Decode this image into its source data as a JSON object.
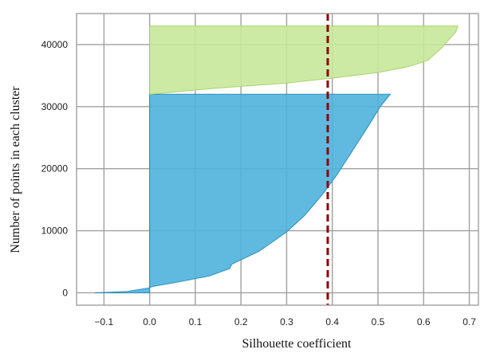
{
  "chart_data": {
    "type": "area",
    "title": "",
    "xlabel": "Silhouette coefficient",
    "ylabel": "Number of points in each  cluster",
    "xlim": [
      -0.16,
      0.72
    ],
    "ylim": [
      -2000,
      45000
    ],
    "xticks": [
      -0.1,
      0.0,
      0.1,
      0.2,
      0.3,
      0.4,
      0.5,
      0.6,
      0.7
    ],
    "xtick_labels": [
      "−0.1",
      "0.0",
      "0.1",
      "0.2",
      "0.3",
      "0.4",
      "0.5",
      "0.6",
      "0.7"
    ],
    "yticks": [
      0,
      10000,
      20000,
      30000,
      40000
    ],
    "ytick_labels": [
      "0",
      "10000",
      "20000",
      "30000",
      "40000"
    ],
    "grid": true,
    "average_line": {
      "x": 0.39,
      "color": "#8b0000",
      "style": "dashed"
    },
    "series": [
      {
        "color": "#4fb3dd",
        "edge_color": "#2a8fbf",
        "y_range": [
          0,
          32000
        ],
        "silhouette_profile": [
          [
            -0.12,
            0
          ],
          [
            -0.05,
            200
          ],
          [
            0.0,
            800
          ],
          [
            0.005,
            1000
          ],
          [
            0.06,
            1700
          ],
          [
            0.13,
            2700
          ],
          [
            0.175,
            3900
          ],
          [
            0.18,
            4600
          ],
          [
            0.24,
            6700
          ],
          [
            0.3,
            9800
          ],
          [
            0.34,
            12500
          ],
          [
            0.38,
            16000
          ],
          [
            0.41,
            19000
          ],
          [
            0.445,
            23000
          ],
          [
            0.48,
            27000
          ],
          [
            0.505,
            30000
          ],
          [
            0.527,
            32000
          ]
        ]
      },
      {
        "color": "#c8e89a",
        "edge_color": "#a9d36a",
        "y_range": [
          32000,
          43000
        ],
        "silhouette_profile": [
          [
            0.0,
            32000
          ],
          [
            0.15,
            33000
          ],
          [
            0.3,
            33800
          ],
          [
            0.4,
            34600
          ],
          [
            0.5,
            35500
          ],
          [
            0.57,
            36500
          ],
          [
            0.61,
            37500
          ],
          [
            0.64,
            39500
          ],
          [
            0.67,
            42000
          ],
          [
            0.675,
            43000
          ]
        ]
      }
    ]
  }
}
